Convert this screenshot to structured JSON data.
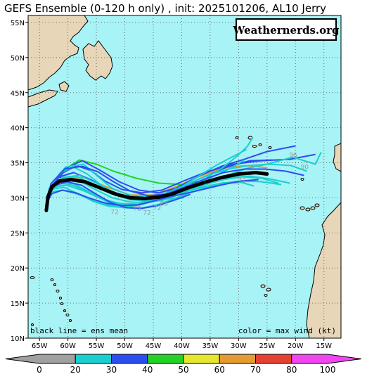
{
  "title": "GEFS Ensemble (0-120 h only) , init: 2025101206, AL10 Jerry",
  "watermark": "Weathernerds.org",
  "legend_mean": "black line = ens mean",
  "legend_color": "color = max wind (kt)",
  "colors": {
    "ocean": "#a7f3f6",
    "land": "#e8d6b8",
    "grid": "#707070",
    "mean_track": "#000000"
  },
  "colorbar": {
    "ticks": [
      "0",
      "20",
      "30",
      "40",
      "50",
      "60",
      "70",
      "80",
      "100"
    ],
    "colors": [
      "#a0a0a0",
      "#1ccfcf",
      "#2b4ef0",
      "#25d125",
      "#e6e62e",
      "#e69a32",
      "#e54030",
      "#f046f0"
    ]
  },
  "chart_data": {
    "type": "map",
    "projection": "equirectangular",
    "lon_range": [
      -67,
      -12
    ],
    "lat_range": [
      10,
      56
    ],
    "lat_labels": [
      "55N",
      "50N",
      "45N",
      "40N",
      "35N",
      "30N",
      "25N",
      "20N",
      "15N",
      "10N"
    ],
    "lon_labels": [
      "65W",
      "60W",
      "55W",
      "50W",
      "45W",
      "40W",
      "35W",
      "30W",
      "25W",
      "20W",
      "15W"
    ],
    "grid": true,
    "wind_labels": [
      {
        "text": "96",
        "lon": -20.4,
        "lat": 35.8
      },
      {
        "text": "90",
        "lon": -18.4,
        "lat": 34.1
      },
      {
        "text": "72",
        "lon": -29.4,
        "lat": 32.2
      },
      {
        "text": "72",
        "lon": -51.8,
        "lat": 27.7
      },
      {
        "text": "72",
        "lon": -47.8,
        "lat": 28.2
      },
      {
        "text": "72",
        "lon": -46.1,
        "lat": 27.6
      },
      {
        "text": "72",
        "lon": -44.3,
        "lat": 28.3
      },
      {
        "text": "88",
        "lon": -43.1,
        "lat": 28.9
      }
    ],
    "mean_track": [
      [
        -63.8,
        28.2
      ],
      [
        -63.5,
        30.2
      ],
      [
        -62.8,
        31.6
      ],
      [
        -61.5,
        32.4
      ],
      [
        -59.5,
        32.6
      ],
      [
        -57,
        32.3
      ],
      [
        -54,
        31.3
      ],
      [
        -51.5,
        30.5
      ],
      [
        -49,
        30.0
      ],
      [
        -46.5,
        29.9
      ],
      [
        -44,
        30.1
      ],
      [
        -41.5,
        30.6
      ],
      [
        -39,
        31.4
      ],
      [
        -36,
        32.2
      ],
      [
        -33,
        32.9
      ],
      [
        -30,
        33.4
      ],
      [
        -27,
        33.6
      ],
      [
        -25,
        33.4
      ]
    ],
    "members": [
      {
        "max_wind_kt": 65,
        "points": [
          [
            -63.8,
            28.2
          ],
          [
            -63.2,
            31.5
          ],
          [
            -61,
            32.8
          ],
          [
            -57,
            32.9
          ],
          [
            -53,
            31.5
          ],
          [
            -49,
            30.4
          ],
          [
            -45,
            30.4
          ],
          [
            -41,
            31.6
          ],
          [
            -37,
            33.0
          ],
          [
            -33,
            34.2
          ],
          [
            -29,
            34.6
          ],
          [
            -25,
            34.3
          ]
        ]
      },
      {
        "max_wind_kt": 45,
        "points": [
          [
            -63.8,
            28.2
          ],
          [
            -63,
            31.8
          ],
          [
            -61,
            33.8
          ],
          [
            -58,
            35.4
          ],
          [
            -55,
            34.8
          ],
          [
            -52,
            33.8
          ],
          [
            -48,
            32.8
          ],
          [
            -44,
            32.1
          ],
          [
            -40,
            31.9
          ],
          [
            -35,
            32.6
          ]
        ]
      },
      {
        "max_wind_kt": 35,
        "points": [
          [
            -63.8,
            28.3
          ],
          [
            -63,
            32
          ],
          [
            -60.5,
            34.2
          ],
          [
            -57.5,
            35.3
          ],
          [
            -54.5,
            34
          ],
          [
            -51,
            32.3
          ],
          [
            -47.5,
            31.1
          ],
          [
            -44,
            30.7
          ],
          [
            -40,
            31.6
          ],
          [
            -36,
            33
          ],
          [
            -32,
            34.4
          ],
          [
            -28,
            35.3
          ],
          [
            -24,
            35.4
          ]
        ]
      },
      {
        "max_wind_kt": 35,
        "points": [
          [
            -63.8,
            28.2
          ],
          [
            -63.3,
            31.3
          ],
          [
            -61.5,
            33
          ],
          [
            -59,
            33.6
          ],
          [
            -56,
            32.6
          ],
          [
            -53,
            31.2
          ],
          [
            -50,
            30.2
          ],
          [
            -47,
            29.8
          ],
          [
            -44,
            30.2
          ],
          [
            -41,
            31.4
          ],
          [
            -37,
            33.1
          ],
          [
            -33,
            34.5
          ],
          [
            -29,
            35.5
          ],
          [
            -25,
            36.6
          ],
          [
            -20,
            37.4
          ]
        ]
      },
      {
        "max_wind_kt": 35,
        "points": [
          [
            -63.8,
            28.2
          ],
          [
            -63.1,
            31.6
          ],
          [
            -60.8,
            33.6
          ],
          [
            -58.5,
            34.6
          ],
          [
            -56,
            33.9
          ],
          [
            -53.5,
            32.4
          ],
          [
            -50.5,
            31.2
          ],
          [
            -47,
            30.7
          ],
          [
            -43.5,
            31.1
          ],
          [
            -40,
            32.3
          ],
          [
            -36,
            33.6
          ],
          [
            -31,
            34.8
          ],
          [
            -26,
            35.3
          ],
          [
            -21,
            35.5
          ],
          [
            -16.5,
            36.2
          ]
        ]
      },
      {
        "max_wind_kt": 25,
        "points": [
          [
            -63.8,
            28.2
          ],
          [
            -63.3,
            31.1
          ],
          [
            -61.4,
            32.6
          ],
          [
            -58.6,
            33.1
          ],
          [
            -55.5,
            31.9
          ],
          [
            -52.5,
            30.6
          ],
          [
            -49.5,
            29.9
          ],
          [
            -46.5,
            29.5
          ],
          [
            -43.5,
            29.6
          ],
          [
            -40,
            30.6
          ],
          [
            -36,
            31.9
          ],
          [
            -32,
            33.2
          ],
          [
            -28.5,
            34.2
          ],
          [
            -25,
            34.8
          ],
          [
            -20.5,
            35.8
          ],
          [
            -16.5,
            34.8
          ],
          [
            -15.5,
            36.5
          ]
        ]
      },
      {
        "max_wind_kt": 25,
        "points": [
          [
            -63.8,
            28.3
          ],
          [
            -63.2,
            31.2
          ],
          [
            -61.2,
            32.4
          ],
          [
            -58.4,
            32.6
          ],
          [
            -55.2,
            31.2
          ],
          [
            -52.2,
            30
          ],
          [
            -49,
            29.4
          ],
          [
            -46,
            29.3
          ],
          [
            -43,
            29.8
          ],
          [
            -40,
            30.9
          ],
          [
            -36.5,
            32.4
          ],
          [
            -33,
            34.2
          ],
          [
            -30.5,
            35.8
          ],
          [
            -28.5,
            37.3
          ],
          [
            -27.5,
            38.6
          ]
        ]
      },
      {
        "max_wind_kt": 25,
        "points": [
          [
            -63.8,
            28.3
          ],
          [
            -63.4,
            30.5
          ],
          [
            -62.4,
            31.6
          ],
          [
            -60.2,
            31.8
          ],
          [
            -57.2,
            31
          ],
          [
            -54,
            29.8
          ],
          [
            -50.8,
            29.2
          ],
          [
            -47.8,
            29.1
          ],
          [
            -45,
            29.5
          ],
          [
            -41.8,
            30.3
          ],
          [
            -38.5,
            31.2
          ],
          [
            -35,
            32.1
          ],
          [
            -31.5,
            32.9
          ],
          [
            -28,
            33.1
          ],
          [
            -24.5,
            32.7
          ],
          [
            -21,
            32.1
          ]
        ]
      },
      {
        "max_wind_kt": 25,
        "points": [
          [
            -63.8,
            28.2
          ],
          [
            -63.5,
            30
          ],
          [
            -62.7,
            30.9
          ],
          [
            -60.8,
            31.1
          ],
          [
            -58.2,
            30.5
          ],
          [
            -55.5,
            29.6
          ],
          [
            -52.5,
            28.9
          ],
          [
            -49.5,
            28.8
          ],
          [
            -46.5,
            29.2
          ],
          [
            -43.3,
            29.9
          ],
          [
            -40,
            30.7
          ],
          [
            -36.5,
            31.5
          ],
          [
            -33,
            32.1
          ],
          [
            -29.5,
            32.4
          ],
          [
            -26,
            32.3
          ],
          [
            -22.5,
            31.9
          ]
        ]
      },
      {
        "max_wind_kt": 25,
        "points": [
          [
            -63.8,
            28.2
          ],
          [
            -63,
            31.9
          ],
          [
            -60.4,
            34.4
          ],
          [
            -57.3,
            34.8
          ],
          [
            -54.8,
            33.1
          ],
          [
            -52.3,
            31.4
          ],
          [
            -49.3,
            30.4
          ],
          [
            -46,
            30.1
          ],
          [
            -42.6,
            30.7
          ],
          [
            -39.2,
            31.9
          ],
          [
            -35.5,
            33.2
          ],
          [
            -31.8,
            34.1
          ],
          [
            -28.2,
            34.6
          ],
          [
            -24.5,
            34.8
          ],
          [
            -20.8,
            34.6
          ],
          [
            -18,
            33.8
          ]
        ]
      },
      {
        "max_wind_kt": 25,
        "points": [
          [
            -63.8,
            28.2
          ],
          [
            -63.2,
            31.4
          ],
          [
            -61,
            32.9
          ],
          [
            -58,
            33.2
          ],
          [
            -55,
            32.1
          ],
          [
            -52,
            30.6
          ],
          [
            -49,
            29.7
          ],
          [
            -46,
            29.6
          ],
          [
            -43,
            30.3
          ],
          [
            -40,
            31.6
          ],
          [
            -37,
            33.1
          ],
          [
            -34,
            34.6
          ],
          [
            -31,
            35.9
          ],
          [
            -28.6,
            36.9
          ]
        ]
      },
      {
        "max_wind_kt": 25,
        "points": [
          [
            -63.8,
            28.2
          ],
          [
            -63.3,
            30.9
          ],
          [
            -61.8,
            32
          ],
          [
            -59.3,
            32.1
          ],
          [
            -56.3,
            30.9
          ],
          [
            -53.3,
            29.5
          ],
          [
            -50.3,
            28.6
          ],
          [
            -47.3,
            28.5
          ],
          [
            -44.3,
            29
          ],
          [
            -41.3,
            29.9
          ],
          [
            -38.3,
            30.8
          ],
          [
            -35.3,
            31.6
          ],
          [
            -32.3,
            32.1
          ],
          [
            -29.5,
            32.2
          ],
          [
            -27.3,
            31.7
          ]
        ]
      },
      {
        "max_wind_kt": 25,
        "points": [
          [
            -63.8,
            28.3
          ],
          [
            -63.5,
            30.3
          ],
          [
            -62.6,
            31.3
          ],
          [
            -60.7,
            31.5
          ],
          [
            -58.2,
            30.6
          ],
          [
            -55.6,
            29.5
          ],
          [
            -52.8,
            28.8
          ],
          [
            -50,
            28.6
          ],
          [
            -47.4,
            29
          ],
          [
            -44.6,
            29.6
          ],
          [
            -42,
            29.9
          ],
          [
            -39.6,
            30
          ]
        ]
      },
      {
        "max_wind_kt": 25,
        "points": [
          [
            -63.8,
            28.2
          ],
          [
            -63.2,
            31.5
          ],
          [
            -61.3,
            33.6
          ],
          [
            -59,
            34.4
          ],
          [
            -56.6,
            33.4
          ],
          [
            -54.3,
            31.9
          ],
          [
            -51.6,
            30.6
          ],
          [
            -48.7,
            29.9
          ],
          [
            -45.6,
            29.7
          ],
          [
            -42.5,
            30.1
          ],
          [
            -39.3,
            31
          ],
          [
            -36,
            31.9
          ],
          [
            -32.7,
            32.6
          ],
          [
            -29.4,
            33
          ],
          [
            -26,
            32.8
          ],
          [
            -23,
            32.1
          ]
        ]
      },
      {
        "max_wind_kt": 25,
        "points": [
          [
            -63.8,
            28.2
          ],
          [
            -63.3,
            30.8
          ],
          [
            -61.8,
            31.7
          ],
          [
            -59.5,
            31.9
          ],
          [
            -57,
            31.1
          ],
          [
            -54.5,
            30.1
          ],
          [
            -52,
            29.3
          ],
          [
            -49.4,
            28.9
          ],
          [
            -46.5,
            29.2
          ],
          [
            -43.5,
            29.8
          ],
          [
            -40.2,
            30.9
          ],
          [
            -37,
            32.1
          ],
          [
            -34,
            33.2
          ],
          [
            -31.2,
            34.3
          ],
          [
            -29,
            35.4
          ]
        ]
      },
      {
        "max_wind_kt": 35,
        "points": [
          [
            -63.8,
            28.2
          ],
          [
            -63.4,
            30.6
          ],
          [
            -62.2,
            31.8
          ],
          [
            -60.2,
            32.3
          ],
          [
            -57.6,
            31.8
          ],
          [
            -55,
            30.5
          ],
          [
            -52.4,
            29.3
          ],
          [
            -49.7,
            28.6
          ],
          [
            -47,
            28.5
          ],
          [
            -44.2,
            28.9
          ],
          [
            -41.2,
            29.7
          ],
          [
            -38.5,
            30.5
          ]
        ]
      },
      {
        "max_wind_kt": 35,
        "points": [
          [
            -63.8,
            28.2
          ],
          [
            -63,
            32
          ],
          [
            -60.6,
            34.1
          ],
          [
            -57.5,
            34.5
          ],
          [
            -54.7,
            33.7
          ],
          [
            -52,
            32.3
          ],
          [
            -49.1,
            31
          ],
          [
            -46,
            30.3
          ],
          [
            -42.8,
            30.5
          ],
          [
            -39.6,
            31.5
          ],
          [
            -36.2,
            32.6
          ],
          [
            -32.7,
            33.6
          ],
          [
            -29,
            34.1
          ],
          [
            -25.3,
            34.1
          ],
          [
            -21.7,
            33.8
          ],
          [
            -18.5,
            33.2
          ]
        ]
      },
      {
        "max_wind_kt": 35,
        "points": [
          [
            -63.8,
            28.3
          ],
          [
            -63.6,
            29.5
          ],
          [
            -62.8,
            30.6
          ],
          [
            -61,
            31.1
          ],
          [
            -58.6,
            30.7
          ],
          [
            -56,
            29.9
          ],
          [
            -53.2,
            29.2
          ],
          [
            -50.4,
            28.9
          ],
          [
            -47.6,
            29
          ],
          [
            -44.7,
            29.6
          ],
          [
            -41.8,
            30.2
          ],
          [
            -38.9,
            30.7
          ],
          [
            -35.8,
            31.3
          ],
          [
            -32.7,
            31.9
          ],
          [
            -29.6,
            32.4
          ],
          [
            -26.5,
            32.6
          ]
        ]
      }
    ]
  }
}
